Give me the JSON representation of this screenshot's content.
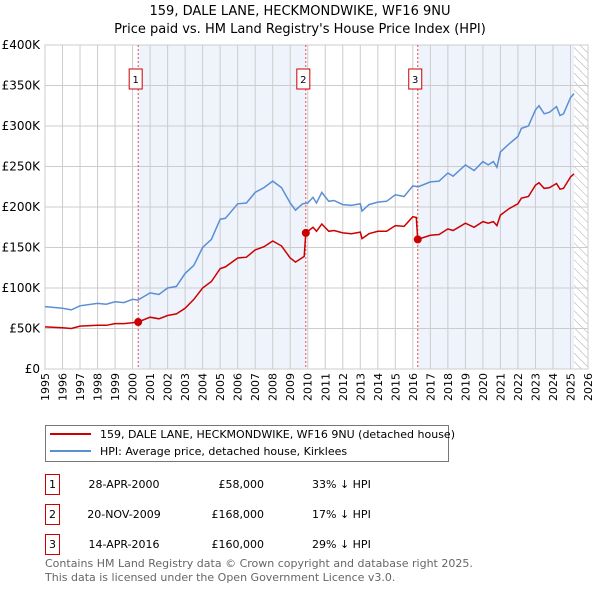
{
  "chart_data": {
    "type": "line",
    "title": "159, DALE LANE, HECKMONDWIKE, WF16 9NU",
    "subtitle": "Price paid vs. HM Land Registry's House Price Index (HPI)",
    "xlim": [
      1995,
      2026
    ],
    "ylim": [
      0,
      400000
    ],
    "grid": true,
    "x_ticks": [
      "1995",
      "1996",
      "1997",
      "1998",
      "1999",
      "2000",
      "2001",
      "2002",
      "2003",
      "2004",
      "2005",
      "2006",
      "2007",
      "2008",
      "2009",
      "2010",
      "2011",
      "2012",
      "2013",
      "2014",
      "2015",
      "2016",
      "2017",
      "2018",
      "2019",
      "2020",
      "2021",
      "2022",
      "2023",
      "2024",
      "2025",
      "2026"
    ],
    "y_ticks": [
      {
        "value": 0,
        "label": "£0"
      },
      {
        "value": 50000,
        "label": "£50K"
      },
      {
        "value": 100000,
        "label": "£100K"
      },
      {
        "value": 150000,
        "label": "£150K"
      },
      {
        "value": 200000,
        "label": "£200K"
      },
      {
        "value": 250000,
        "label": "£250K"
      },
      {
        "value": 300000,
        "label": "£300K"
      },
      {
        "value": 350000,
        "label": "£350K"
      },
      {
        "value": 400000,
        "label": "£400K"
      }
    ],
    "shaded_ranges": [
      [
        2000.32,
        2009.89
      ],
      [
        2016.28,
        2025.2
      ]
    ],
    "forecast_hatch_from": 2025.2,
    "series": [
      {
        "name": "159, DALE LANE, HECKMONDWIKE, WF16 9NU (detached house)",
        "color": "#cc0000",
        "points": [
          [
            1995,
            52
          ],
          [
            1996,
            51
          ],
          [
            1996.5,
            50
          ],
          [
            1997,
            53
          ],
          [
            1998,
            54
          ],
          [
            1998.5,
            54
          ],
          [
            1999,
            56
          ],
          [
            1999.5,
            56
          ],
          [
            2000,
            57
          ],
          [
            2000.32,
            58
          ],
          [
            2001,
            64
          ],
          [
            2001.5,
            62
          ],
          [
            2002,
            66
          ],
          [
            2002.5,
            68
          ],
          [
            2003,
            75
          ],
          [
            2003.5,
            86
          ],
          [
            2004,
            100
          ],
          [
            2004.5,
            108
          ],
          [
            2005,
            124
          ],
          [
            2005.3,
            126
          ],
          [
            2006,
            137
          ],
          [
            2006.5,
            138
          ],
          [
            2007,
            147
          ],
          [
            2007.5,
            151
          ],
          [
            2008,
            158
          ],
          [
            2008.5,
            152
          ],
          [
            2009,
            137
          ],
          [
            2009.3,
            132
          ],
          [
            2009.8,
            139
          ],
          [
            2009.89,
            168
          ],
          [
            2010.3,
            175
          ],
          [
            2010.5,
            170
          ],
          [
            2010.8,
            179
          ],
          [
            2011.2,
            170
          ],
          [
            2011.5,
            171
          ],
          [
            2012,
            168
          ],
          [
            2012.5,
            167
          ],
          [
            2013,
            169
          ],
          [
            2013.1,
            161
          ],
          [
            2013.5,
            167
          ],
          [
            2014,
            170
          ],
          [
            2014.5,
            170
          ],
          [
            2015,
            177
          ],
          [
            2015.5,
            176
          ],
          [
            2016,
            188
          ],
          [
            2016.2,
            187
          ],
          [
            2016.28,
            160
          ],
          [
            2017,
            165
          ],
          [
            2017.5,
            166
          ],
          [
            2018,
            173
          ],
          [
            2018.3,
            171
          ],
          [
            2019,
            180
          ],
          [
            2019.5,
            175
          ],
          [
            2020,
            182
          ],
          [
            2020.3,
            180
          ],
          [
            2020.6,
            182
          ],
          [
            2020.8,
            177
          ],
          [
            2021,
            190
          ],
          [
            2021.5,
            198
          ],
          [
            2022,
            204
          ],
          [
            2022.2,
            211
          ],
          [
            2022.6,
            213
          ],
          [
            2023,
            227
          ],
          [
            2023.2,
            230
          ],
          [
            2023.5,
            223
          ],
          [
            2023.8,
            224
          ],
          [
            2024.2,
            229
          ],
          [
            2024.4,
            222
          ],
          [
            2024.6,
            223
          ],
          [
            2025,
            237
          ],
          [
            2025.2,
            241
          ]
        ]
      },
      {
        "name": "HPI: Average price, detached house, Kirklees",
        "color": "#5b8fd4",
        "points": [
          [
            1995,
            77
          ],
          [
            1996,
            75
          ],
          [
            1996.5,
            73
          ],
          [
            1997,
            78
          ],
          [
            1998,
            81
          ],
          [
            1998.5,
            80
          ],
          [
            1999,
            83
          ],
          [
            1999.5,
            82
          ],
          [
            2000,
            86
          ],
          [
            2000.3,
            85
          ],
          [
            2001,
            94
          ],
          [
            2001.5,
            92
          ],
          [
            2002,
            100
          ],
          [
            2002.5,
            102
          ],
          [
            2003,
            118
          ],
          [
            2003.5,
            128
          ],
          [
            2004,
            150
          ],
          [
            2004.5,
            160
          ],
          [
            2005,
            185
          ],
          [
            2005.3,
            186
          ],
          [
            2006,
            204
          ],
          [
            2006.5,
            205
          ],
          [
            2007,
            218
          ],
          [
            2007.5,
            224
          ],
          [
            2008,
            232
          ],
          [
            2008.5,
            224
          ],
          [
            2009,
            205
          ],
          [
            2009.3,
            196
          ],
          [
            2009.7,
            204
          ],
          [
            2010,
            205
          ],
          [
            2010.3,
            212
          ],
          [
            2010.5,
            205
          ],
          [
            2010.8,
            218
          ],
          [
            2011.2,
            207
          ],
          [
            2011.5,
            208
          ],
          [
            2012,
            203
          ],
          [
            2012.5,
            202
          ],
          [
            2013,
            204
          ],
          [
            2013.1,
            195
          ],
          [
            2013.5,
            203
          ],
          [
            2014,
            206
          ],
          [
            2014.5,
            207
          ],
          [
            2015,
            215
          ],
          [
            2015.5,
            213
          ],
          [
            2016,
            226
          ],
          [
            2016.3,
            225
          ],
          [
            2017,
            231
          ],
          [
            2017.5,
            232
          ],
          [
            2018,
            242
          ],
          [
            2018.3,
            238
          ],
          [
            2019,
            252
          ],
          [
            2019.5,
            245
          ],
          [
            2020,
            256
          ],
          [
            2020.3,
            252
          ],
          [
            2020.6,
            256
          ],
          [
            2020.8,
            249
          ],
          [
            2021,
            268
          ],
          [
            2021.5,
            278
          ],
          [
            2022,
            287
          ],
          [
            2022.2,
            297
          ],
          [
            2022.6,
            300
          ],
          [
            2023,
            320
          ],
          [
            2023.2,
            325
          ],
          [
            2023.5,
            315
          ],
          [
            2023.8,
            317
          ],
          [
            2024.2,
            324
          ],
          [
            2024.4,
            313
          ],
          [
            2024.6,
            315
          ],
          [
            2025,
            335
          ],
          [
            2025.2,
            340
          ]
        ]
      }
    ],
    "value_unit": "£ thousands",
    "sales": [
      {
        "label": "1",
        "x": 2000.32,
        "value": 58,
        "date": "28-APR-2000",
        "price": "£58,000",
        "delta": "33% ↓ HPI"
      },
      {
        "label": "2",
        "x": 2009.89,
        "value": 168,
        "date": "20-NOV-2009",
        "price": "£168,000",
        "delta": "17% ↓ HPI"
      },
      {
        "label": "3",
        "x": 2016.28,
        "value": 160,
        "date": "14-APR-2016",
        "price": "£160,000",
        "delta": "29% ↓ HPI"
      }
    ]
  },
  "footer": {
    "line1": "Contains HM Land Registry data © Crown copyright and database right 2025.",
    "line2": "This data is licensed under the Open Government Licence v3.0."
  },
  "colors": {
    "red": "#cc0000",
    "blue": "#5b8fd4",
    "shade": "#eef3fc",
    "grid": "#cccccc"
  }
}
